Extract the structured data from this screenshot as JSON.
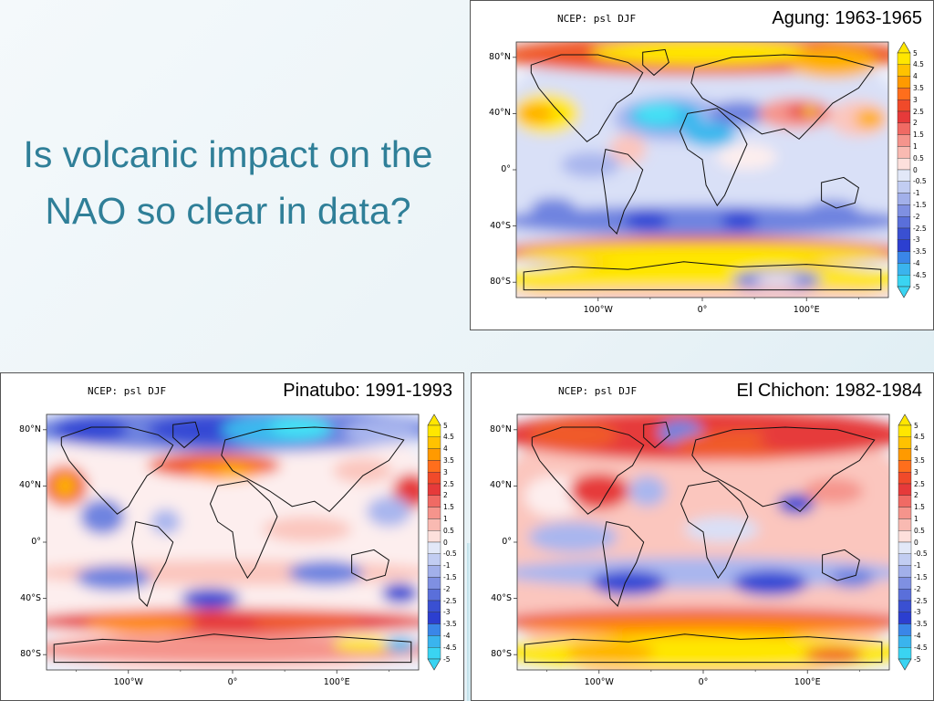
{
  "slide": {
    "title": "Is volcanic impact on the NAO so clear in data?"
  },
  "panels": [
    {
      "id": "agung",
      "header": "NCEP: psl DJF",
      "event_label": "Agung: 1963-1965",
      "pattern": "agung"
    },
    {
      "id": "pinatubo",
      "header": "NCEP: psl DJF",
      "event_label": "Pinatubo: 1991-1993",
      "pattern": "pinatubo"
    },
    {
      "id": "elchichon",
      "header": "NCEP: psl DJF",
      "event_label": "El Chichon: 1982-1984",
      "pattern": "elchichon"
    }
  ],
  "axes": {
    "lat_ticks": [
      "80°N",
      "40°N",
      "0°",
      "40°S",
      "80°S"
    ],
    "lon_ticks": [
      "100°W",
      "0°",
      "100°E"
    ]
  },
  "colorbar": {
    "levels": [
      "5",
      "4.5",
      "4",
      "3.5",
      "3",
      "2.5",
      "2",
      "1.5",
      "1",
      "0.5",
      "0",
      "-0.5",
      "-1",
      "-1.5",
      "-2",
      "-2.5",
      "-3",
      "-3.5",
      "-4",
      "-4.5",
      "-5"
    ],
    "colors": [
      "#ffe600",
      "#ffc200",
      "#ff9a00",
      "#ff6e1c",
      "#f04a2a",
      "#e63a3a",
      "#f06a64",
      "#f5948c",
      "#f9bab2",
      "#fde0dc",
      "#e2e8f8",
      "#c2cdf2",
      "#a2b0ea",
      "#7f90e2",
      "#5a6fda",
      "#3a50d2",
      "#2c3fd0",
      "#3a86e8",
      "#3ab4ee",
      "#3ad4f2"
    ]
  }
}
